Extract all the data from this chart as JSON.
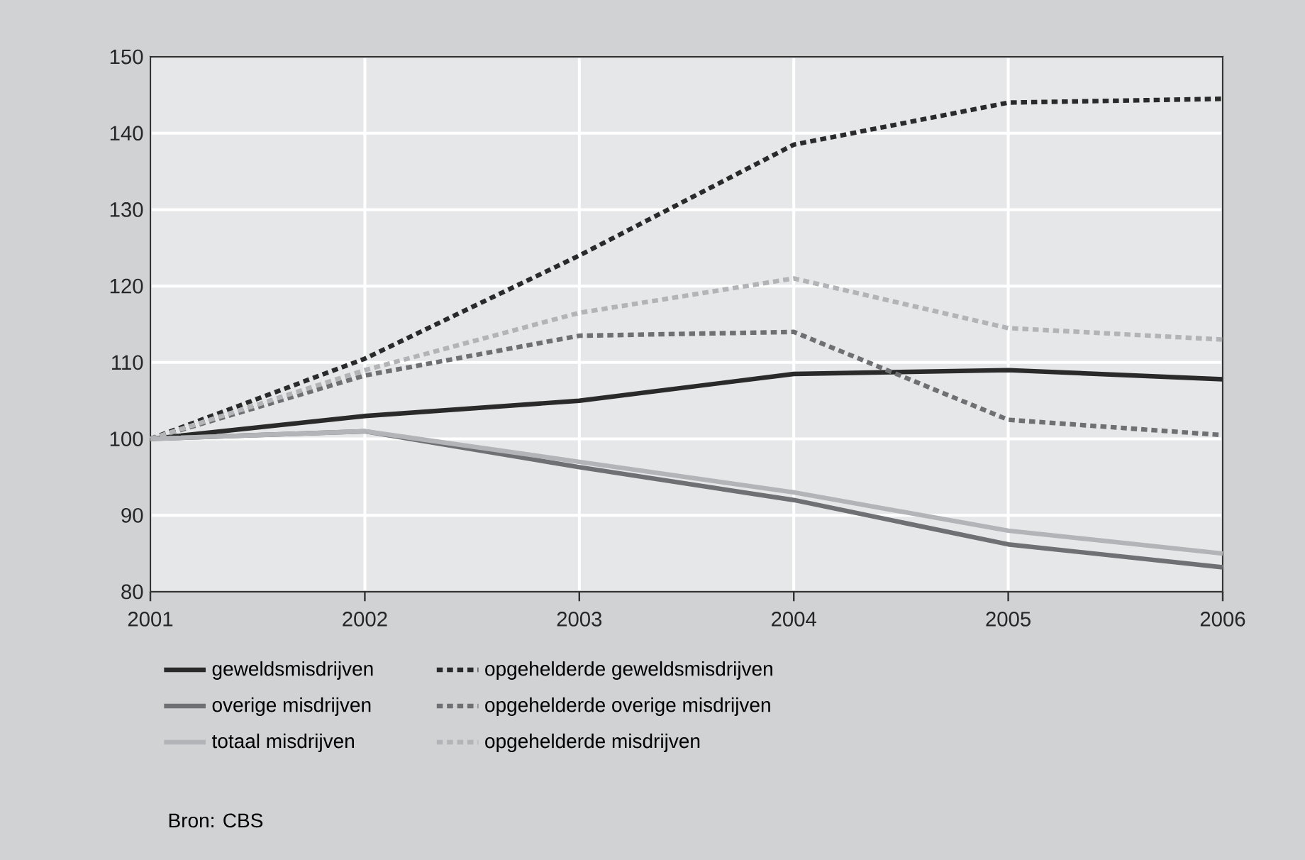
{
  "chart_data": {
    "type": "line",
    "x": [
      2001,
      2002,
      2003,
      2004,
      2005,
      2006
    ],
    "xlim": [
      2001,
      2006
    ],
    "xticks": [
      2001,
      2002,
      2003,
      2004,
      2005,
      2006
    ],
    "ylim": [
      80,
      150
    ],
    "yticks": [
      80,
      90,
      100,
      110,
      120,
      130,
      140,
      150
    ],
    "grid": true,
    "legend": "bottom",
    "marker": "none",
    "series": [
      {
        "name": "geweldsmisdrijven",
        "color": "#2b2a2b",
        "line_style": "solid",
        "values": [
          100,
          103,
          105,
          108.5,
          109,
          107.8
        ]
      },
      {
        "name": "opgehelderde geweldsmisdrijven",
        "color": "#2b2a2b",
        "line_style": "dashed",
        "values": [
          100,
          110.5,
          124,
          138.5,
          144,
          144.5
        ]
      },
      {
        "name": "overige misdrijven",
        "color": "#6f7073",
        "line_style": "solid",
        "values": [
          100,
          101,
          96.3,
          92,
          86.2,
          83.2
        ]
      },
      {
        "name": "opgehelderde overige misdrijven",
        "color": "#6f7073",
        "line_style": "dashed",
        "values": [
          100,
          108.3,
          113.5,
          114,
          102.5,
          100.5
        ]
      },
      {
        "name": "totaal misdrijven",
        "color": "#b3b4b7",
        "line_style": "solid",
        "values": [
          100,
          101,
          97,
          93,
          88,
          85
        ]
      },
      {
        "name": "opgehelderde misdrijven",
        "color": "#b3b4b7",
        "line_style": "dashed",
        "values": [
          100,
          109,
          116.5,
          121,
          114.5,
          113
        ]
      }
    ],
    "annotations": [
      "Bron: CBS"
    ]
  }
}
